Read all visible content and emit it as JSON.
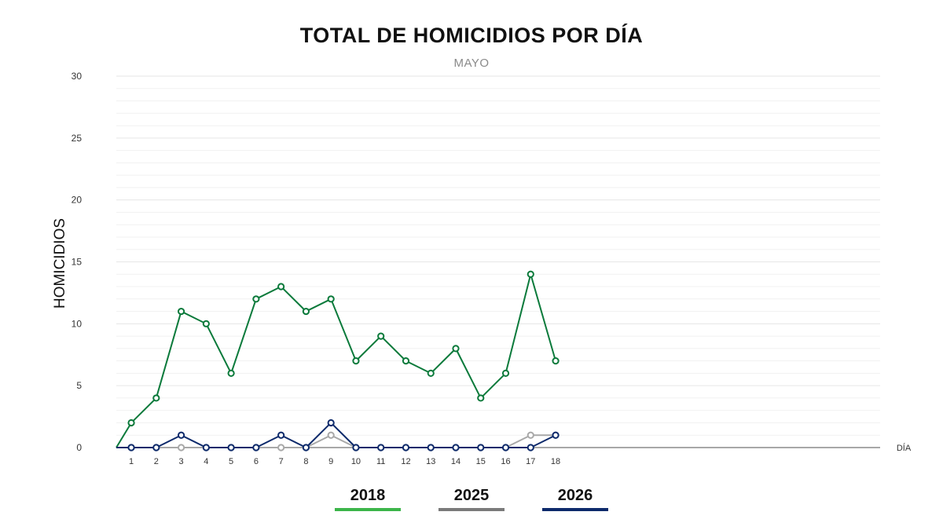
{
  "chart_data": {
    "type": "line",
    "title": "TOTAL DE HOMICIDIOS POR DÍA",
    "subtitle": "MAYO",
    "xlabel": "DÍA",
    "ylabel": "HOMICIDIOS",
    "ylim": [
      0,
      30
    ],
    "yticks": [
      "0",
      "5",
      "10",
      "15",
      "20",
      "25",
      "30"
    ],
    "x": [
      1,
      2,
      3,
      4,
      5,
      6,
      7,
      8,
      9,
      10,
      11,
      12,
      13,
      14,
      15,
      16,
      17,
      18
    ],
    "x_range": [
      0.4,
      31
    ],
    "grid": true,
    "legend_position": "bottom",
    "series": [
      {
        "name": "2018",
        "color": "#0b7a3b",
        "legend_color": "#3cb54a",
        "values": [
          2,
          4,
          11,
          10,
          6,
          12,
          13,
          11,
          12,
          7,
          9,
          7,
          6,
          8,
          4,
          6,
          14,
          7
        ]
      },
      {
        "name": "2025",
        "color": "#a8a8a8",
        "legend_color": "#7a7a7a",
        "values": [
          0,
          0,
          0,
          0,
          0,
          0,
          0,
          0,
          1,
          0,
          0,
          0,
          0,
          0,
          0,
          0,
          1,
          1
        ]
      },
      {
        "name": "2026",
        "color": "#0d2a6b",
        "legend_color": "#0d2a6b",
        "values": [
          0,
          0,
          1,
          0,
          0,
          0,
          1,
          0,
          2,
          0,
          0,
          0,
          0,
          0,
          0,
          0,
          0,
          1
        ]
      }
    ]
  }
}
